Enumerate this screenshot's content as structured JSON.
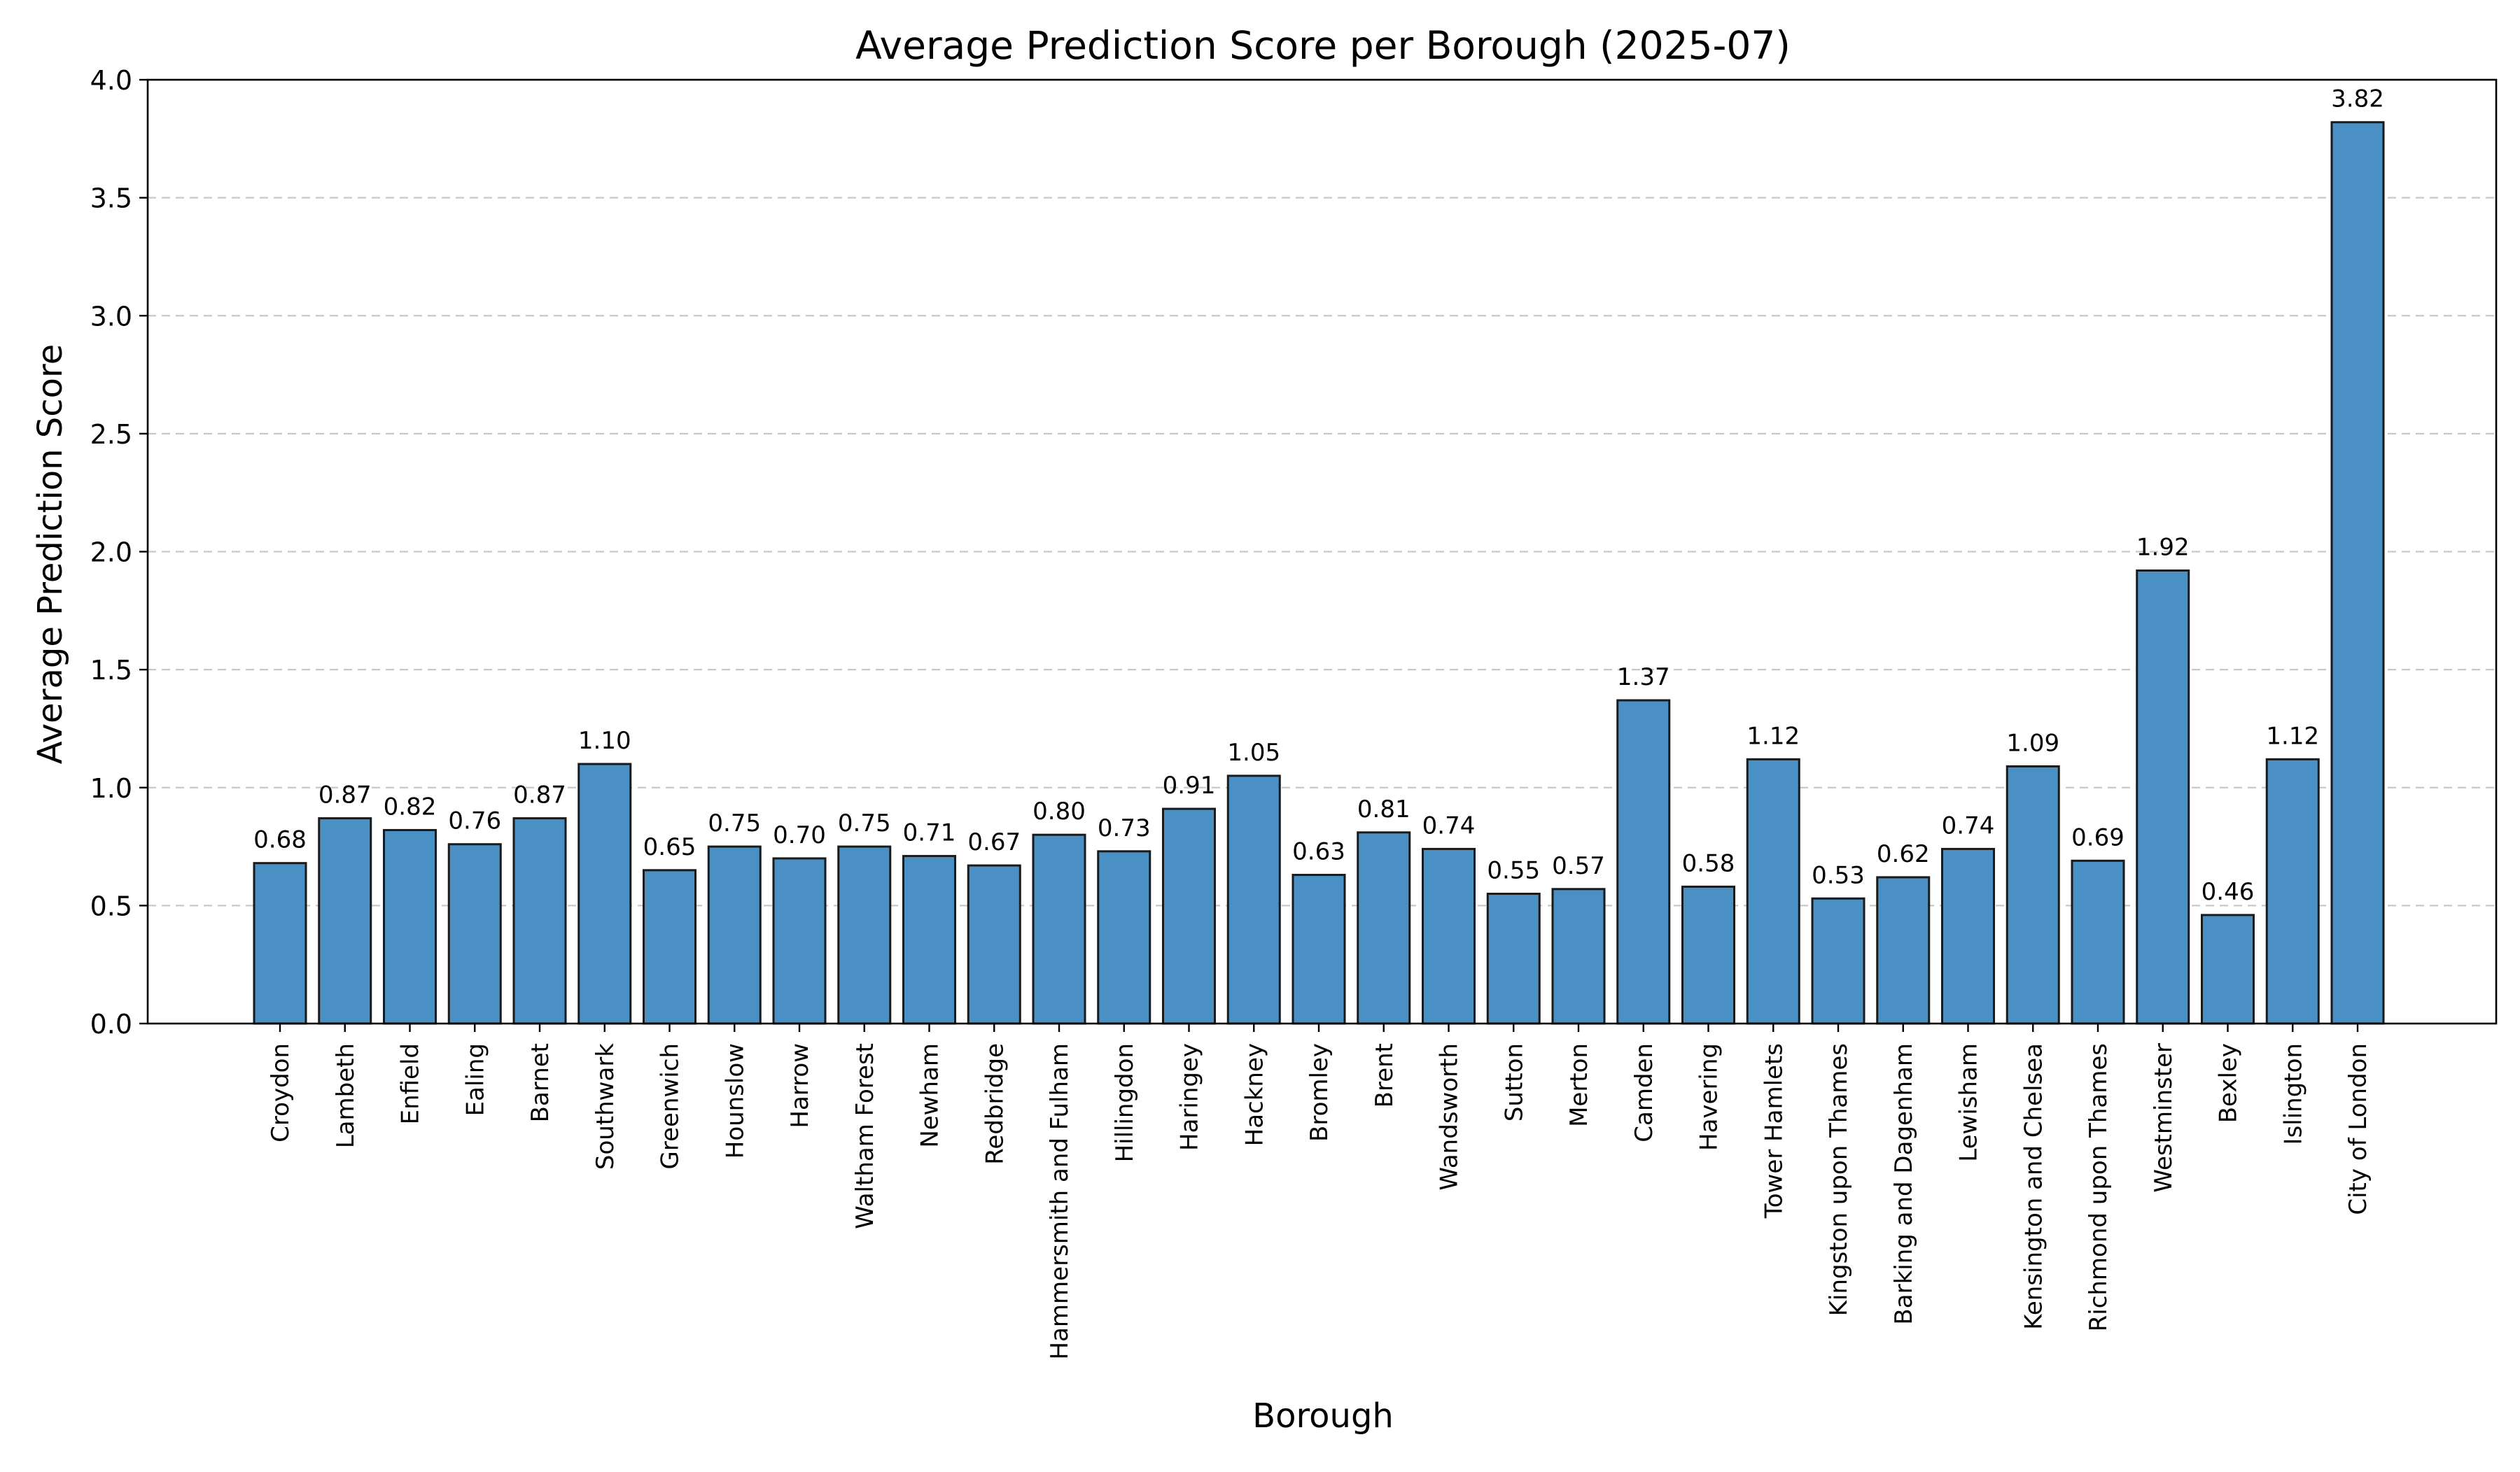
{
  "chart_data": {
    "type": "bar",
    "title": "Average Prediction Score per Borough (2025-07)",
    "xlabel": "Borough",
    "ylabel": "Average Prediction Score",
    "ylim": [
      0,
      4.0
    ],
    "yticks": [
      "0.0",
      "0.5",
      "1.0",
      "1.5",
      "2.0",
      "2.5",
      "3.0",
      "3.5",
      "4.0"
    ],
    "grid": "y-dashed",
    "bar_color": "#4a90c4",
    "bar_edge_color": "#1a1a1a",
    "categories": [
      "Croydon",
      "Lambeth",
      "Enfield",
      "Ealing",
      "Barnet",
      "Southwark",
      "Greenwich",
      "Hounslow",
      "Harrow",
      "Waltham Forest",
      "Newham",
      "Redbridge",
      "Hammersmith and Fulham",
      "Hillingdon",
      "Haringey",
      "Hackney",
      "Bromley",
      "Brent",
      "Wandsworth",
      "Sutton",
      "Merton",
      "Camden",
      "Havering",
      "Tower Hamlets",
      "Kingston upon Thames",
      "Barking and Dagenham",
      "Lewisham",
      "Kensington and Chelsea",
      "Richmond upon Thames",
      "Westminster",
      "Bexley",
      "Islington",
      "City of London"
    ],
    "values": [
      0.68,
      0.87,
      0.82,
      0.76,
      0.87,
      1.1,
      0.65,
      0.75,
      0.7,
      0.75,
      0.71,
      0.67,
      0.8,
      0.73,
      0.91,
      1.05,
      0.63,
      0.81,
      0.74,
      0.55,
      0.57,
      1.37,
      0.58,
      1.12,
      0.53,
      0.62,
      0.74,
      1.09,
      0.69,
      1.92,
      0.46,
      1.12,
      3.82
    ],
    "value_labels": [
      "0.68",
      "0.87",
      "0.82",
      "0.76",
      "0.87",
      "1.10",
      "0.65",
      "0.75",
      "0.70",
      "0.75",
      "0.71",
      "0.67",
      "0.80",
      "0.73",
      "0.91",
      "1.05",
      "0.63",
      "0.81",
      "0.74",
      "0.55",
      "0.57",
      "1.37",
      "0.58",
      "1.12",
      "0.53",
      "0.62",
      "0.74",
      "1.09",
      "0.69",
      "1.92",
      "0.46",
      "1.12",
      "3.82"
    ]
  }
}
